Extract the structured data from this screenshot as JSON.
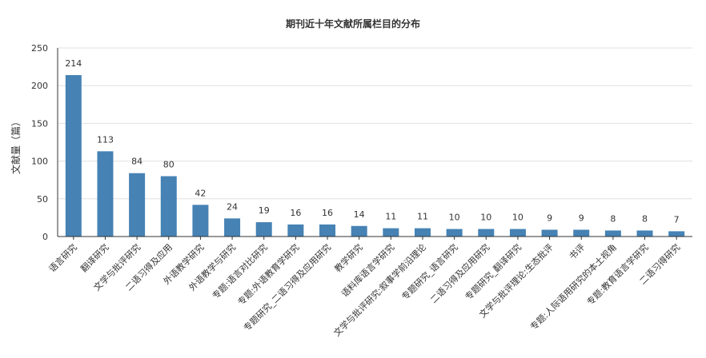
{
  "chart_data": {
    "type": "bar",
    "title": "期刊近十年文献所属栏目的分布",
    "xlabel": "",
    "ylabel": "文献量（篇）",
    "ylim": [
      0,
      250
    ],
    "yticks": [
      0,
      50,
      100,
      150,
      200,
      250
    ],
    "grid": true,
    "categories": [
      "语言研究",
      "翻译研究",
      "文学与批评研究",
      "二语习得及应用",
      "外语教学研究",
      "外语教学与研究",
      "专题:语言对比研究",
      "专题:外语教育学研究",
      "专题研究_二语习得及应用研究",
      "教学研究",
      "语料库语言学研究",
      "文学与批评研究:叙事学前沿理论",
      "专题研究_语言研究",
      "二语习得及应用研究",
      "专题研究_翻译研究",
      "文学与批评理论:生态批评",
      "书评",
      "专题:人际语用研究的本土视角",
      "专题:教育语言学研究",
      "二语习得研究"
    ],
    "values": [
      214,
      113,
      84,
      80,
      42,
      24,
      19,
      16,
      16,
      14,
      11,
      11,
      10,
      10,
      10,
      9,
      9,
      8,
      8,
      7
    ],
    "colors": {
      "bar": "#4682b4",
      "grid": "#e0e0e0",
      "axis": "#333333",
      "text": "#333333"
    }
  }
}
